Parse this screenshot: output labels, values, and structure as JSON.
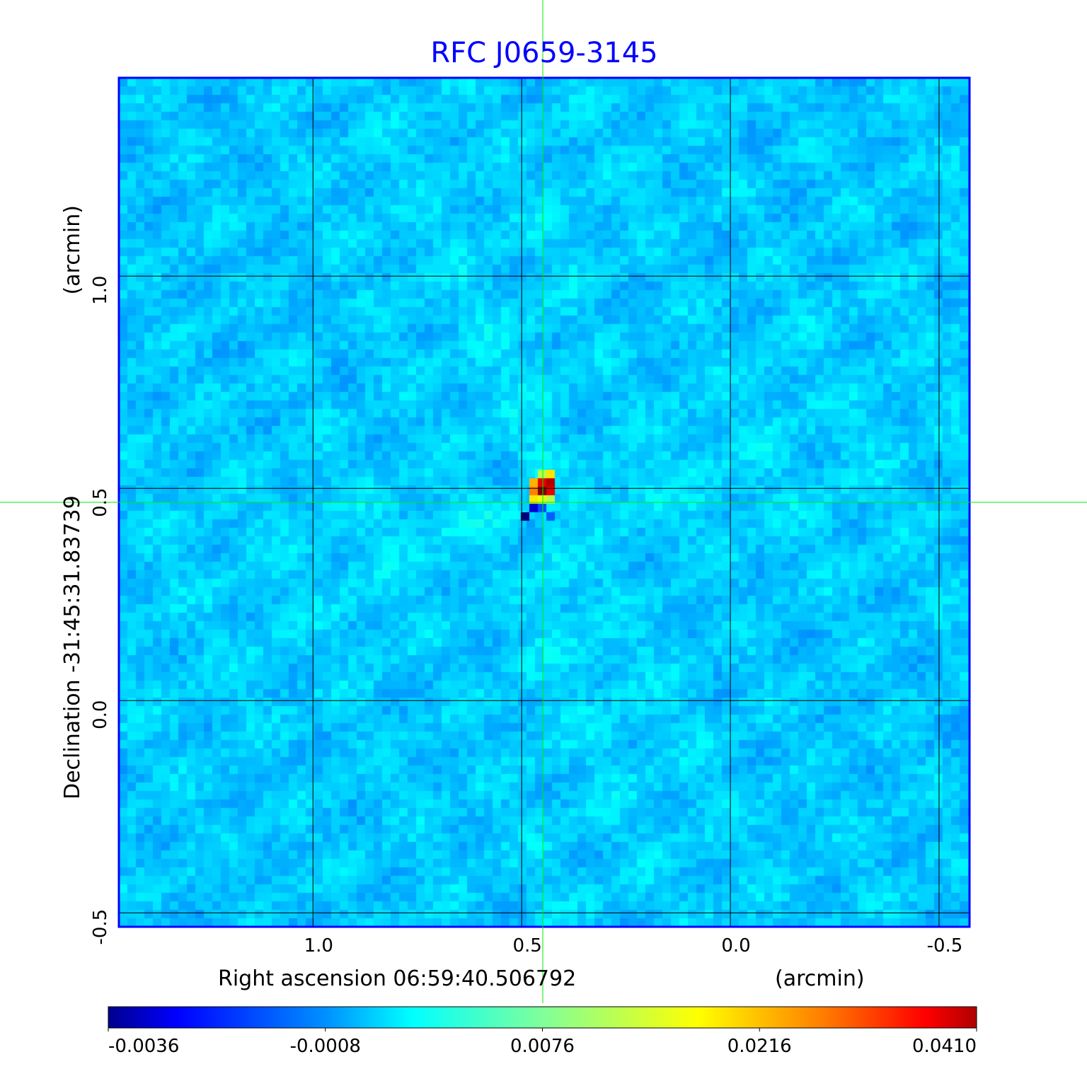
{
  "chart_data": {
    "type": "heatmap",
    "title": "RFC J0659-3145",
    "xlabel": "Right ascension  06:59:40.506792",
    "xunit": "(arcmin)",
    "ylabel": "Declination  -31:45:31.83739",
    "yunit": "(arcmin)",
    "x_ticks": [
      1.0,
      0.5,
      0.0,
      -0.5
    ],
    "x_tick_labels": [
      "1.0",
      "0.5",
      "0.0",
      "-0.5"
    ],
    "y_ticks": [
      1.0,
      0.5,
      0.0,
      -0.5
    ],
    "y_tick_labels": [
      "1.0",
      "0.5",
      "0.0",
      "-0.5"
    ],
    "xlim": [
      1.465,
      -0.573
    ],
    "ylim": [
      -0.533,
      1.467
    ],
    "grid": true,
    "crosshair": {
      "x": 0.45,
      "y": 0.467
    },
    "source_peak": {
      "x": 0.44,
      "y": 0.48,
      "value": 0.041
    },
    "colormap": "jet",
    "colorbar": {
      "tick_labels": [
        "-0.0036",
        "-0.0008",
        "0.0076",
        "0.0216",
        "0.0410"
      ],
      "range": [
        -0.0036,
        0.041
      ]
    },
    "colors": {
      "title": "#0000ff",
      "frame": "#0000ff",
      "grid": "#000000",
      "crosshair": "#00ee00",
      "background_level": "#00b4ff"
    }
  }
}
